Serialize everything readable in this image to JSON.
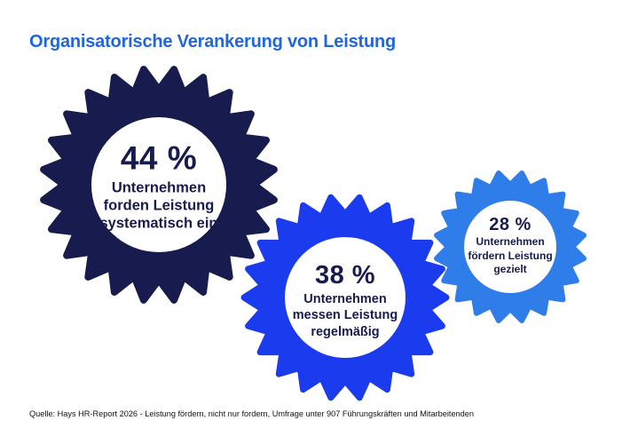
{
  "title": "Organisatorische Verankerung von Leistung",
  "colors": {
    "title_blue": "#2066dd",
    "gear_dark_navy": "#171b4d",
    "gear_royal_blue": "#1b3bee",
    "gear_light_blue": "#2e7de9",
    "label_text": "#171b4d",
    "background": "#ffffff"
  },
  "gears": [
    {
      "id": "systematisch-einfordern",
      "value": "44 %",
      "lines": [
        "Unternehmen",
        "forden Leistung",
        "systematisch ein"
      ],
      "color": "#171b4d"
    },
    {
      "id": "regelmaessig-messen",
      "value": "38 %",
      "lines": [
        "Unternehmen",
        "messen Leistung",
        "regelmäßig"
      ],
      "color": "#1b3bee"
    },
    {
      "id": "gezielt-foerdern",
      "value": "28 %",
      "lines": [
        "Unternehmen",
        "fördern Leistung",
        "gezielt"
      ],
      "color": "#2e7de9"
    }
  ],
  "source": "Quelle: Hays HR-Report 2026 - Leistung fördern, nicht nur fordern, Umfrage unter 907 Führungskräften und Mitarbeitenden",
  "chart_data": {
    "type": "table",
    "title": "Organisatorische Verankerung von Leistung",
    "categories": [
      "Unternehmen forden Leistung systematisch ein",
      "Unternehmen messen Leistung regelmäßig",
      "Unternehmen fördern Leistung gezielt"
    ],
    "values": [
      44,
      38,
      28
    ],
    "unit": "%",
    "note": "Umfrage unter 907 Führungskräften und Mitarbeitenden, Hays HR-Report 2026"
  }
}
